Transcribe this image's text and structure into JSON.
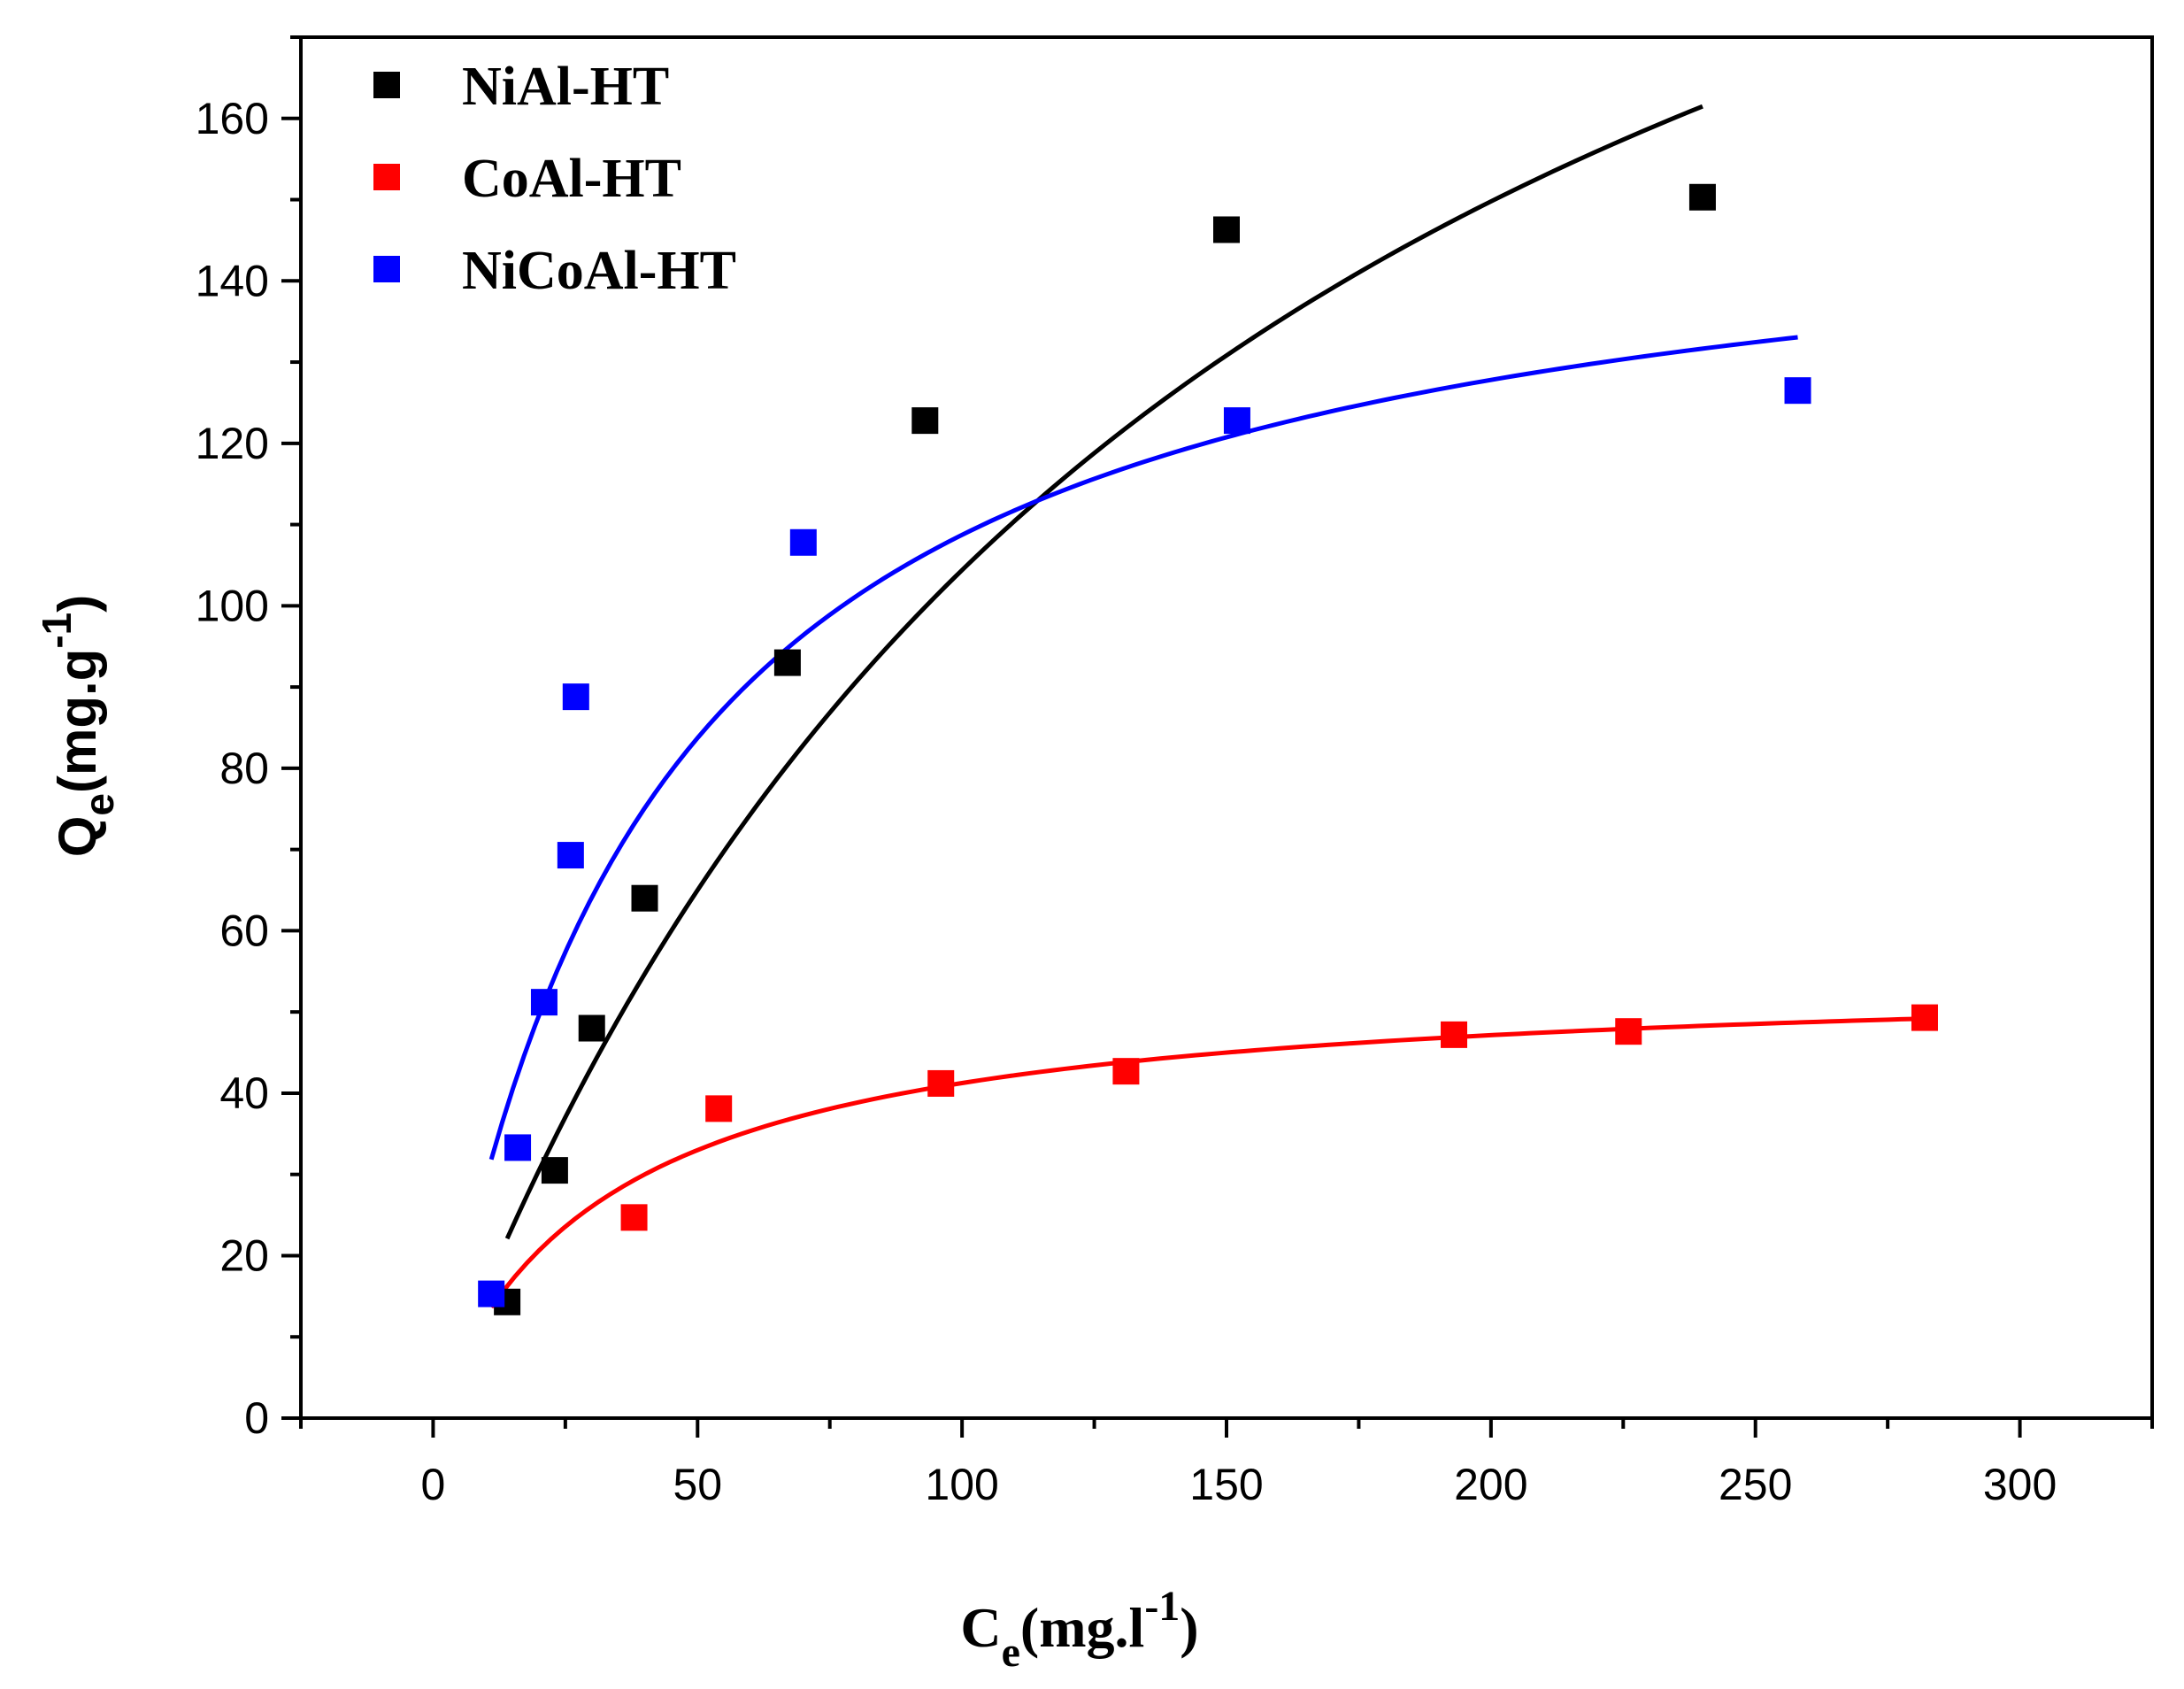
{
  "chart_data": {
    "type": "scatter",
    "title": "",
    "xlabel": {
      "main": "C",
      "sub": "e",
      "unit": "(mg.l",
      "sup": "-1",
      "close": ")"
    },
    "ylabel": {
      "main": "Q",
      "sub": "e",
      "unit": "(mg.g",
      "sup": "-1",
      "close": ")"
    },
    "xlim": [
      -25,
      325
    ],
    "ylim": [
      0,
      170
    ],
    "x_ticks": [
      0,
      50,
      100,
      150,
      200,
      250,
      300
    ],
    "y_ticks": [
      0,
      20,
      40,
      60,
      80,
      100,
      120,
      140,
      160
    ],
    "x_tick_labels": [
      "0",
      "50",
      "100",
      "150",
      "200",
      "250",
      "300"
    ],
    "y_tick_labels": [
      "0",
      "20",
      "40",
      "60",
      "80",
      "100",
      "120",
      "140",
      "160"
    ],
    "legend_position": "top-left",
    "grid": false,
    "series": [
      {
        "name": "NiAl-HT",
        "color": "#000000",
        "points": [
          [
            14,
            14.3
          ],
          [
            23,
            30.5
          ],
          [
            30,
            48
          ],
          [
            40,
            64
          ],
          [
            67,
            93
          ],
          [
            93,
            122.8
          ],
          [
            150,
            146.3
          ],
          [
            240,
            150.3
          ]
        ],
        "fit": {
          "model": "langmuir",
          "qmax": 265,
          "kl": 0.0065,
          "x_from": 14,
          "x_to": 240
        }
      },
      {
        "name": "CoAl-HT",
        "color": "#ff0000",
        "points": [
          [
            38,
            24.7
          ],
          [
            54,
            38.1
          ],
          [
            96,
            41.2
          ],
          [
            131,
            42.7
          ],
          [
            193,
            47.2
          ],
          [
            226,
            47.6
          ],
          [
            282,
            49.3
          ]
        ],
        "fit": {
          "model": "langmuir",
          "qmax": 55,
          "kl": 0.03,
          "x_from": 11,
          "x_to": 282
        }
      },
      {
        "name": "NiCoAl-HT",
        "color": "#0000ff",
        "points": [
          [
            11,
            15.3
          ],
          [
            16,
            33.3
          ],
          [
            21,
            51.2
          ],
          [
            26,
            69.3
          ],
          [
            27,
            88.8
          ],
          [
            70,
            107.8
          ],
          [
            152,
            122.8
          ],
          [
            258,
            126.5
          ]
        ],
        "fit": {
          "model": "langmuir",
          "qmax": 155,
          "kl": 0.0235,
          "x_from": 11,
          "x_to": 258
        }
      }
    ]
  }
}
